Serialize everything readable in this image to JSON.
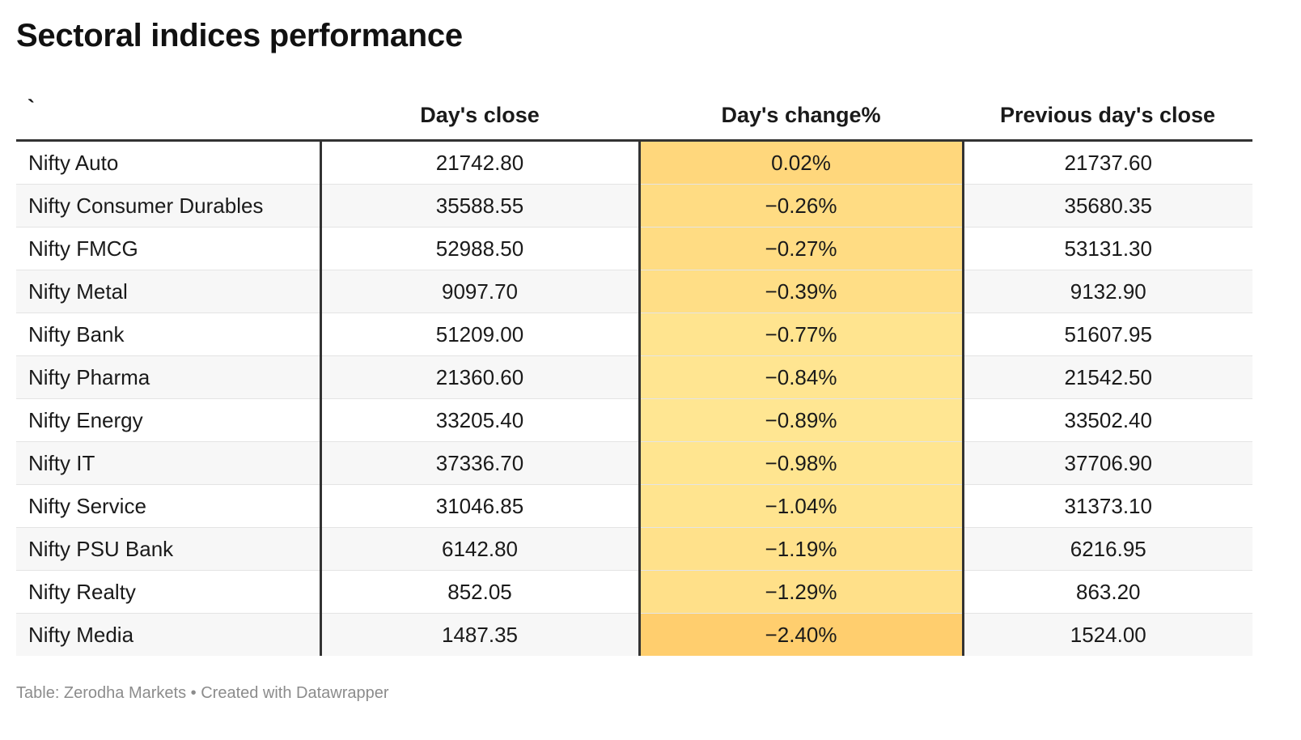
{
  "title": "Sectoral indices performance",
  "footer": "Table: Zerodha Markets • Created with Datawrapper",
  "colors": {
    "heat_low": "#fff3a6",
    "heat_high": "#ffce6e",
    "separator": "#333333",
    "stripe": "#f7f7f7"
  },
  "chart_data": {
    "type": "table",
    "columns": [
      "`",
      "Day's close",
      "Day's change%",
      "Previous day's close"
    ],
    "rows": [
      {
        "name": "Nifty Auto",
        "close": "21742.80",
        "change": "0.02%",
        "change_value": 0.02,
        "prev": "21737.60"
      },
      {
        "name": "Nifty Consumer Durables",
        "close": "35588.55",
        "change": "−0.26%",
        "change_value": -0.26,
        "prev": "35680.35"
      },
      {
        "name": "Nifty FMCG",
        "close": "52988.50",
        "change": "−0.27%",
        "change_value": -0.27,
        "prev": "53131.30"
      },
      {
        "name": "Nifty Metal",
        "close": "9097.70",
        "change": "−0.39%",
        "change_value": -0.39,
        "prev": "9132.90"
      },
      {
        "name": "Nifty Bank",
        "close": "51209.00",
        "change": "−0.77%",
        "change_value": -0.77,
        "prev": "51607.95"
      },
      {
        "name": "Nifty Pharma",
        "close": "21360.60",
        "change": "−0.84%",
        "change_value": -0.84,
        "prev": "21542.50"
      },
      {
        "name": "Nifty Energy",
        "close": "33205.40",
        "change": "−0.89%",
        "change_value": -0.89,
        "prev": "33502.40"
      },
      {
        "name": "Nifty IT",
        "close": "37336.70",
        "change": "−0.98%",
        "change_value": -0.98,
        "prev": "37706.90"
      },
      {
        "name": "Nifty Service",
        "close": "31046.85",
        "change": "−1.04%",
        "change_value": -1.04,
        "prev": "31373.10"
      },
      {
        "name": "Nifty PSU Bank",
        "close": "6142.80",
        "change": "−1.19%",
        "change_value": -1.19,
        "prev": "6216.95"
      },
      {
        "name": "Nifty Realty",
        "close": "852.05",
        "change": "−1.29%",
        "change_value": -1.29,
        "prev": "863.20"
      },
      {
        "name": "Nifty Media",
        "close": "1487.35",
        "change": "−2.40%",
        "change_value": -2.4,
        "prev": "1524.00"
      }
    ]
  }
}
